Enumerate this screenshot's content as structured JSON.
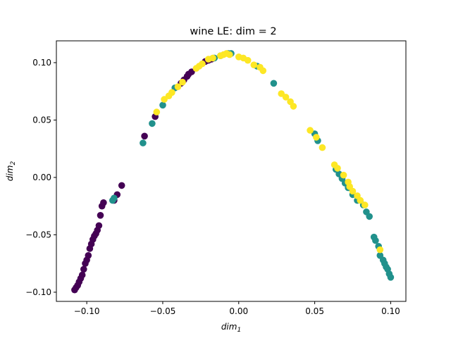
{
  "chart_data": {
    "type": "scatter",
    "title": "wine LE: dim = 2",
    "xlabel": {
      "base": "dim",
      "sub": "1"
    },
    "ylabel": {
      "base": "dim",
      "sub": "2"
    },
    "xlim": [
      -0.12,
      0.11
    ],
    "ylim": [
      -0.108,
      0.119
    ],
    "xticks": [
      -0.1,
      -0.05,
      0.0,
      0.05,
      0.1
    ],
    "yticks": [
      -0.1,
      -0.05,
      0.0,
      0.05,
      0.1
    ],
    "xtick_labels": [
      "−0.10",
      "−0.05",
      "0.00",
      "0.05",
      "0.10"
    ],
    "ytick_labels": [
      "−0.10",
      "−0.05",
      "0.00",
      "0.05",
      "0.10"
    ],
    "grid": false,
    "series": [
      {
        "color": "#440154",
        "x": [
          -0.108,
          -0.107,
          -0.106,
          -0.105,
          -0.104,
          -0.103,
          -0.102,
          -0.101,
          -0.1,
          -0.099,
          -0.098,
          -0.097,
          -0.096,
          -0.095,
          -0.094,
          -0.093,
          -0.092,
          -0.091,
          -0.09,
          -0.089,
          -0.082,
          -0.08,
          -0.077,
          -0.062,
          -0.055,
          -0.038,
          -0.036,
          -0.034,
          -0.033,
          -0.031,
          -0.022,
          -0.02,
          -0.018
        ],
        "y": [
          -0.098,
          -0.096,
          -0.094,
          -0.091,
          -0.088,
          -0.085,
          -0.08,
          -0.075,
          -0.072,
          -0.068,
          -0.062,
          -0.058,
          -0.054,
          -0.051,
          -0.049,
          -0.046,
          -0.042,
          -0.033,
          -0.025,
          -0.022,
          -0.02,
          -0.015,
          -0.007,
          0.036,
          0.053,
          0.082,
          0.085,
          0.088,
          0.09,
          0.092,
          0.101,
          0.102,
          0.103
        ]
      },
      {
        "color": "#21918c",
        "x": [
          -0.083,
          -0.082,
          -0.063,
          -0.057,
          -0.05,
          -0.042,
          -0.016,
          -0.012,
          -0.007,
          -0.005,
          0.012,
          0.023,
          0.05,
          0.052,
          0.064,
          0.066,
          0.068,
          0.07,
          0.072,
          0.075,
          0.078,
          0.082,
          0.084,
          0.086,
          0.089,
          0.09,
          0.092,
          0.093,
          0.095,
          0.096,
          0.097,
          0.098,
          0.099,
          0.1
        ],
        "y": [
          -0.02,
          -0.018,
          0.03,
          0.047,
          0.063,
          0.078,
          0.104,
          0.106,
          0.108,
          0.108,
          0.097,
          0.082,
          0.038,
          0.032,
          0.007,
          0.003,
          -0.001,
          -0.005,
          -0.009,
          -0.015,
          -0.02,
          -0.024,
          -0.03,
          -0.034,
          -0.052,
          -0.055,
          -0.06,
          -0.068,
          -0.072,
          -0.075,
          -0.078,
          -0.08,
          -0.084,
          -0.087
        ]
      },
      {
        "color": "#fde725",
        "x": [
          -0.054,
          -0.049,
          -0.046,
          -0.044,
          -0.04,
          -0.037,
          -0.028,
          -0.026,
          -0.024,
          -0.02,
          -0.017,
          -0.012,
          -0.01,
          -0.008,
          -0.006,
          0.0,
          0.003,
          0.006,
          0.01,
          0.014,
          0.016,
          0.028,
          0.031,
          0.034,
          0.036,
          0.047,
          0.051,
          0.055,
          0.063,
          0.065,
          0.069,
          0.072,
          0.073,
          0.075,
          0.078,
          0.08,
          0.083,
          0.093
        ],
        "y": [
          0.057,
          0.068,
          0.071,
          0.074,
          0.079,
          0.083,
          0.095,
          0.097,
          0.099,
          0.103,
          0.104,
          0.106,
          0.107,
          0.108,
          0.107,
          0.105,
          0.104,
          0.102,
          0.098,
          0.096,
          0.093,
          0.073,
          0.07,
          0.066,
          0.062,
          0.041,
          0.035,
          0.026,
          0.011,
          0.008,
          0.002,
          -0.004,
          -0.008,
          -0.012,
          -0.016,
          -0.02,
          -0.024,
          -0.063
        ]
      }
    ]
  }
}
